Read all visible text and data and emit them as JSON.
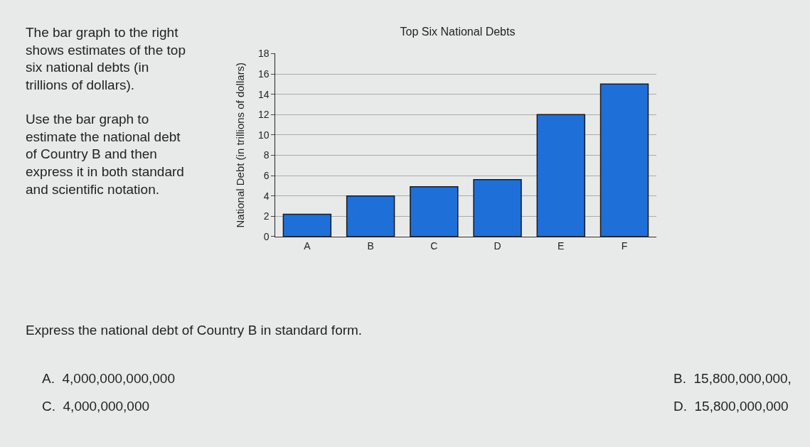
{
  "chart_data": {
    "type": "bar",
    "title": "Top Six National Debts",
    "ylabel": "National Debt (in trillions of dollars)",
    "categories": [
      "A",
      "B",
      "C",
      "D",
      "E",
      "F"
    ],
    "values": [
      2.2,
      4,
      4.9,
      5.6,
      12,
      15
    ],
    "color": "#1f6fd8",
    "ylim": [
      0,
      18
    ],
    "yticks": [
      0,
      2,
      4,
      6,
      8,
      10,
      12,
      14,
      16,
      18
    ],
    "grid": "y",
    "annotations": [
      "The bar graph to the right\nshows estimates of the top\nsix national debts (in\ntrillions of dollars).",
      "Use the bar graph to\nestimate the national debt\nof Country B and then\nexpress it in both standard\nand scientific notation.",
      "Express the national debt of Country B in standard form.",
      "A.  4,000,000,000,000",
      "C.  4,000,000,000",
      "B.  15,800,000,000,",
      "D.  15,800,000,000"
    ]
  }
}
